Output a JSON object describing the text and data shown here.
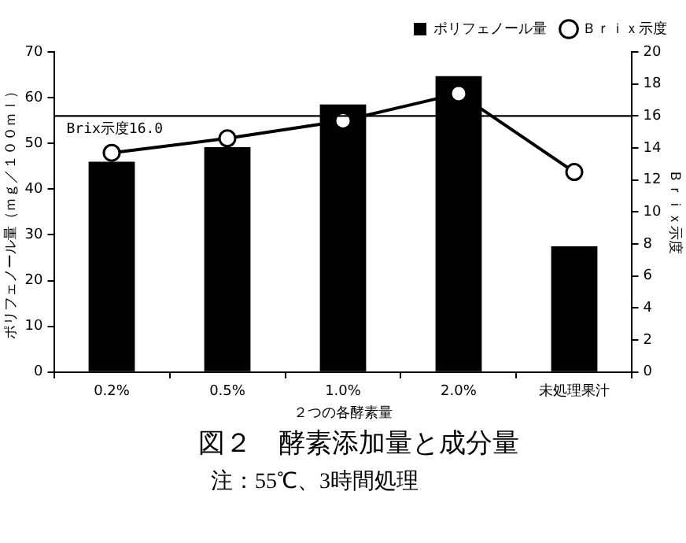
{
  "chart_data": {
    "type": "bar",
    "title": "図２　酵素添加量と成分量",
    "annotations": [
      "注：55℃、3時間処理"
    ],
    "xlabel": "２つの各酵素量",
    "ylabel": "ポリフェノール量（ｍｇ／１００ｍｌ）",
    "y2label": "Ｂｒｉｘ示度",
    "categories": [
      "0.2%",
      "0.5%",
      "1.0%",
      "2.0%",
      "未処理果汁"
    ],
    "series": [
      {
        "name": "ポリフェノール量",
        "color": "#000000",
        "values": [
          46,
          49.2,
          58.5,
          64.7,
          27.5
        ]
      },
      {
        "name": "Ｂｒｉｘ示度",
        "type": "line",
        "axis": "y2",
        "color": "#000000",
        "marker": "circle",
        "values": [
          13.7,
          14.6,
          15.7,
          17.4,
          12.5
        ]
      }
    ],
    "ylim": [
      0,
      70
    ],
    "yticks": [
      0,
      10,
      20,
      30,
      40,
      50,
      60,
      70
    ],
    "y2lim": [
      0,
      20
    ],
    "y2ticks": [
      0,
      2,
      4,
      6,
      8,
      10,
      12,
      14,
      16,
      18,
      20
    ],
    "ref_lines": [
      {
        "axis": "y2",
        "value": 16,
        "label": "Brix示度16.0",
        "color": "#000000"
      }
    ],
    "grid": false,
    "legend": "top right"
  }
}
